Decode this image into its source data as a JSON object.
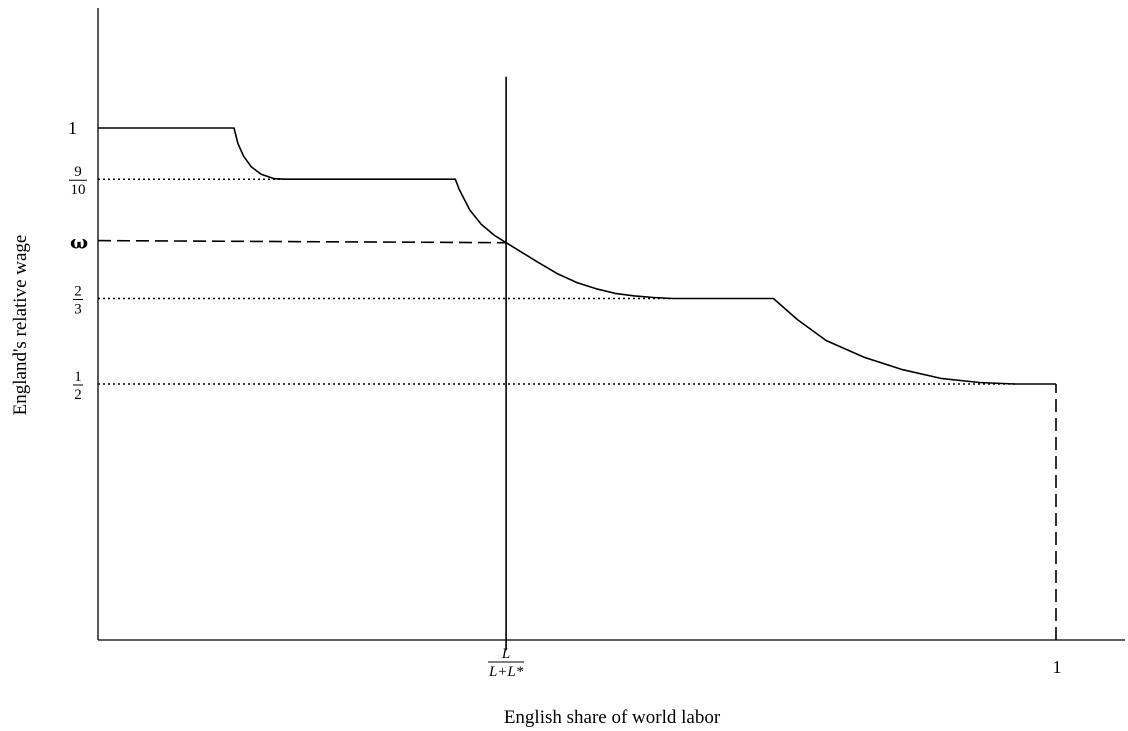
{
  "chart_data": {
    "type": "line",
    "title": "",
    "xlabel": "English share of world labor",
    "ylabel": "England's relative wage",
    "xlim": [
      0,
      1.07
    ],
    "ylim": [
      0,
      1.21
    ],
    "grid": false,
    "y_ticks": [
      {
        "value": 1,
        "label": "1"
      },
      {
        "value": 0.9,
        "num": "9",
        "den": "10"
      },
      {
        "value": 0.776,
        "label": "ω"
      },
      {
        "value": 0.667,
        "num": "2",
        "den": "3"
      },
      {
        "value": 0.5,
        "num": "1",
        "den": "2"
      }
    ],
    "x_ticks": [
      {
        "value": 0.426,
        "num": "L",
        "den": "L+L*"
      },
      {
        "value": 1,
        "label": "1"
      }
    ],
    "series": [
      {
        "style": "solid",
        "points": [
          [
            0,
            1
          ],
          [
            0.142,
            1
          ],
          [
            0.146,
            0.97
          ],
          [
            0.152,
            0.945
          ],
          [
            0.16,
            0.924
          ],
          [
            0.17,
            0.91
          ],
          [
            0.184,
            0.901
          ],
          [
            0.196,
            0.9
          ],
          [
            0.373,
            0.9
          ],
          [
            0.377,
            0.88
          ],
          [
            0.388,
            0.84
          ],
          [
            0.4,
            0.812
          ],
          [
            0.414,
            0.79
          ],
          [
            0.426,
            0.776
          ],
          [
            0.44,
            0.76
          ],
          [
            0.46,
            0.737
          ],
          [
            0.48,
            0.715
          ],
          [
            0.5,
            0.698
          ],
          [
            0.52,
            0.686
          ],
          [
            0.54,
            0.677
          ],
          [
            0.56,
            0.672
          ],
          [
            0.58,
            0.669
          ],
          [
            0.6,
            0.667
          ],
          [
            0.705,
            0.667
          ],
          [
            0.73,
            0.626
          ],
          [
            0.76,
            0.585
          ],
          [
            0.8,
            0.552
          ],
          [
            0.84,
            0.528
          ],
          [
            0.88,
            0.511
          ],
          [
            0.92,
            0.503
          ],
          [
            0.957,
            0.5
          ],
          [
            1,
            0.5
          ]
        ]
      },
      {
        "style": "solid",
        "points": [
          [
            0.426,
            -0.02
          ],
          [
            0.426,
            1.1
          ]
        ]
      },
      {
        "style": "dashed",
        "points": [
          [
            0,
            0.78
          ],
          [
            0.426,
            0.776
          ]
        ]
      },
      {
        "style": "dashed",
        "points": [
          [
            1,
            0
          ],
          [
            1,
            0.5
          ]
        ]
      },
      {
        "style": "dotted",
        "points": [
          [
            0,
            0.9
          ],
          [
            0.196,
            0.9
          ]
        ]
      },
      {
        "style": "dotted",
        "points": [
          [
            0,
            0.667
          ],
          [
            0.6,
            0.667
          ]
        ]
      },
      {
        "style": "dotted",
        "points": [
          [
            0,
            0.5
          ],
          [
            0.957,
            0.5
          ]
        ]
      }
    ]
  }
}
